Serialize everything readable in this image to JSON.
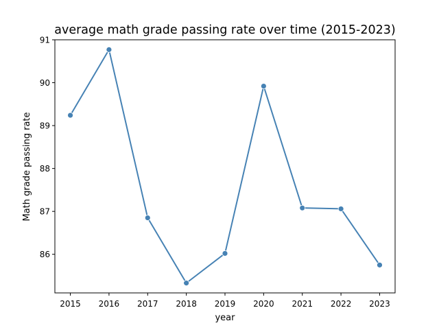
{
  "chart_data": {
    "type": "line",
    "title": "average math grade passing rate over time (2015-2023)",
    "xlabel": "year",
    "ylabel": "Math grade passing rate",
    "x": [
      2015,
      2016,
      2017,
      2018,
      2019,
      2020,
      2021,
      2022,
      2023
    ],
    "series": [
      {
        "values": [
          89.24,
          90.77,
          86.85,
          85.33,
          86.02,
          89.92,
          87.08,
          87.06,
          85.75
        ]
      }
    ],
    "xticks": [
      "2015",
      "2016",
      "2017",
      "2018",
      "2019",
      "2020",
      "2021",
      "2022",
      "2023"
    ],
    "yticks": [
      "86",
      "87",
      "88",
      "89",
      "90",
      "91"
    ],
    "xlim": [
      2014.6,
      2023.4
    ],
    "ylim": [
      85.1,
      91.0
    ],
    "grid": false,
    "marker": "circle",
    "line_color": "#4682b4"
  }
}
